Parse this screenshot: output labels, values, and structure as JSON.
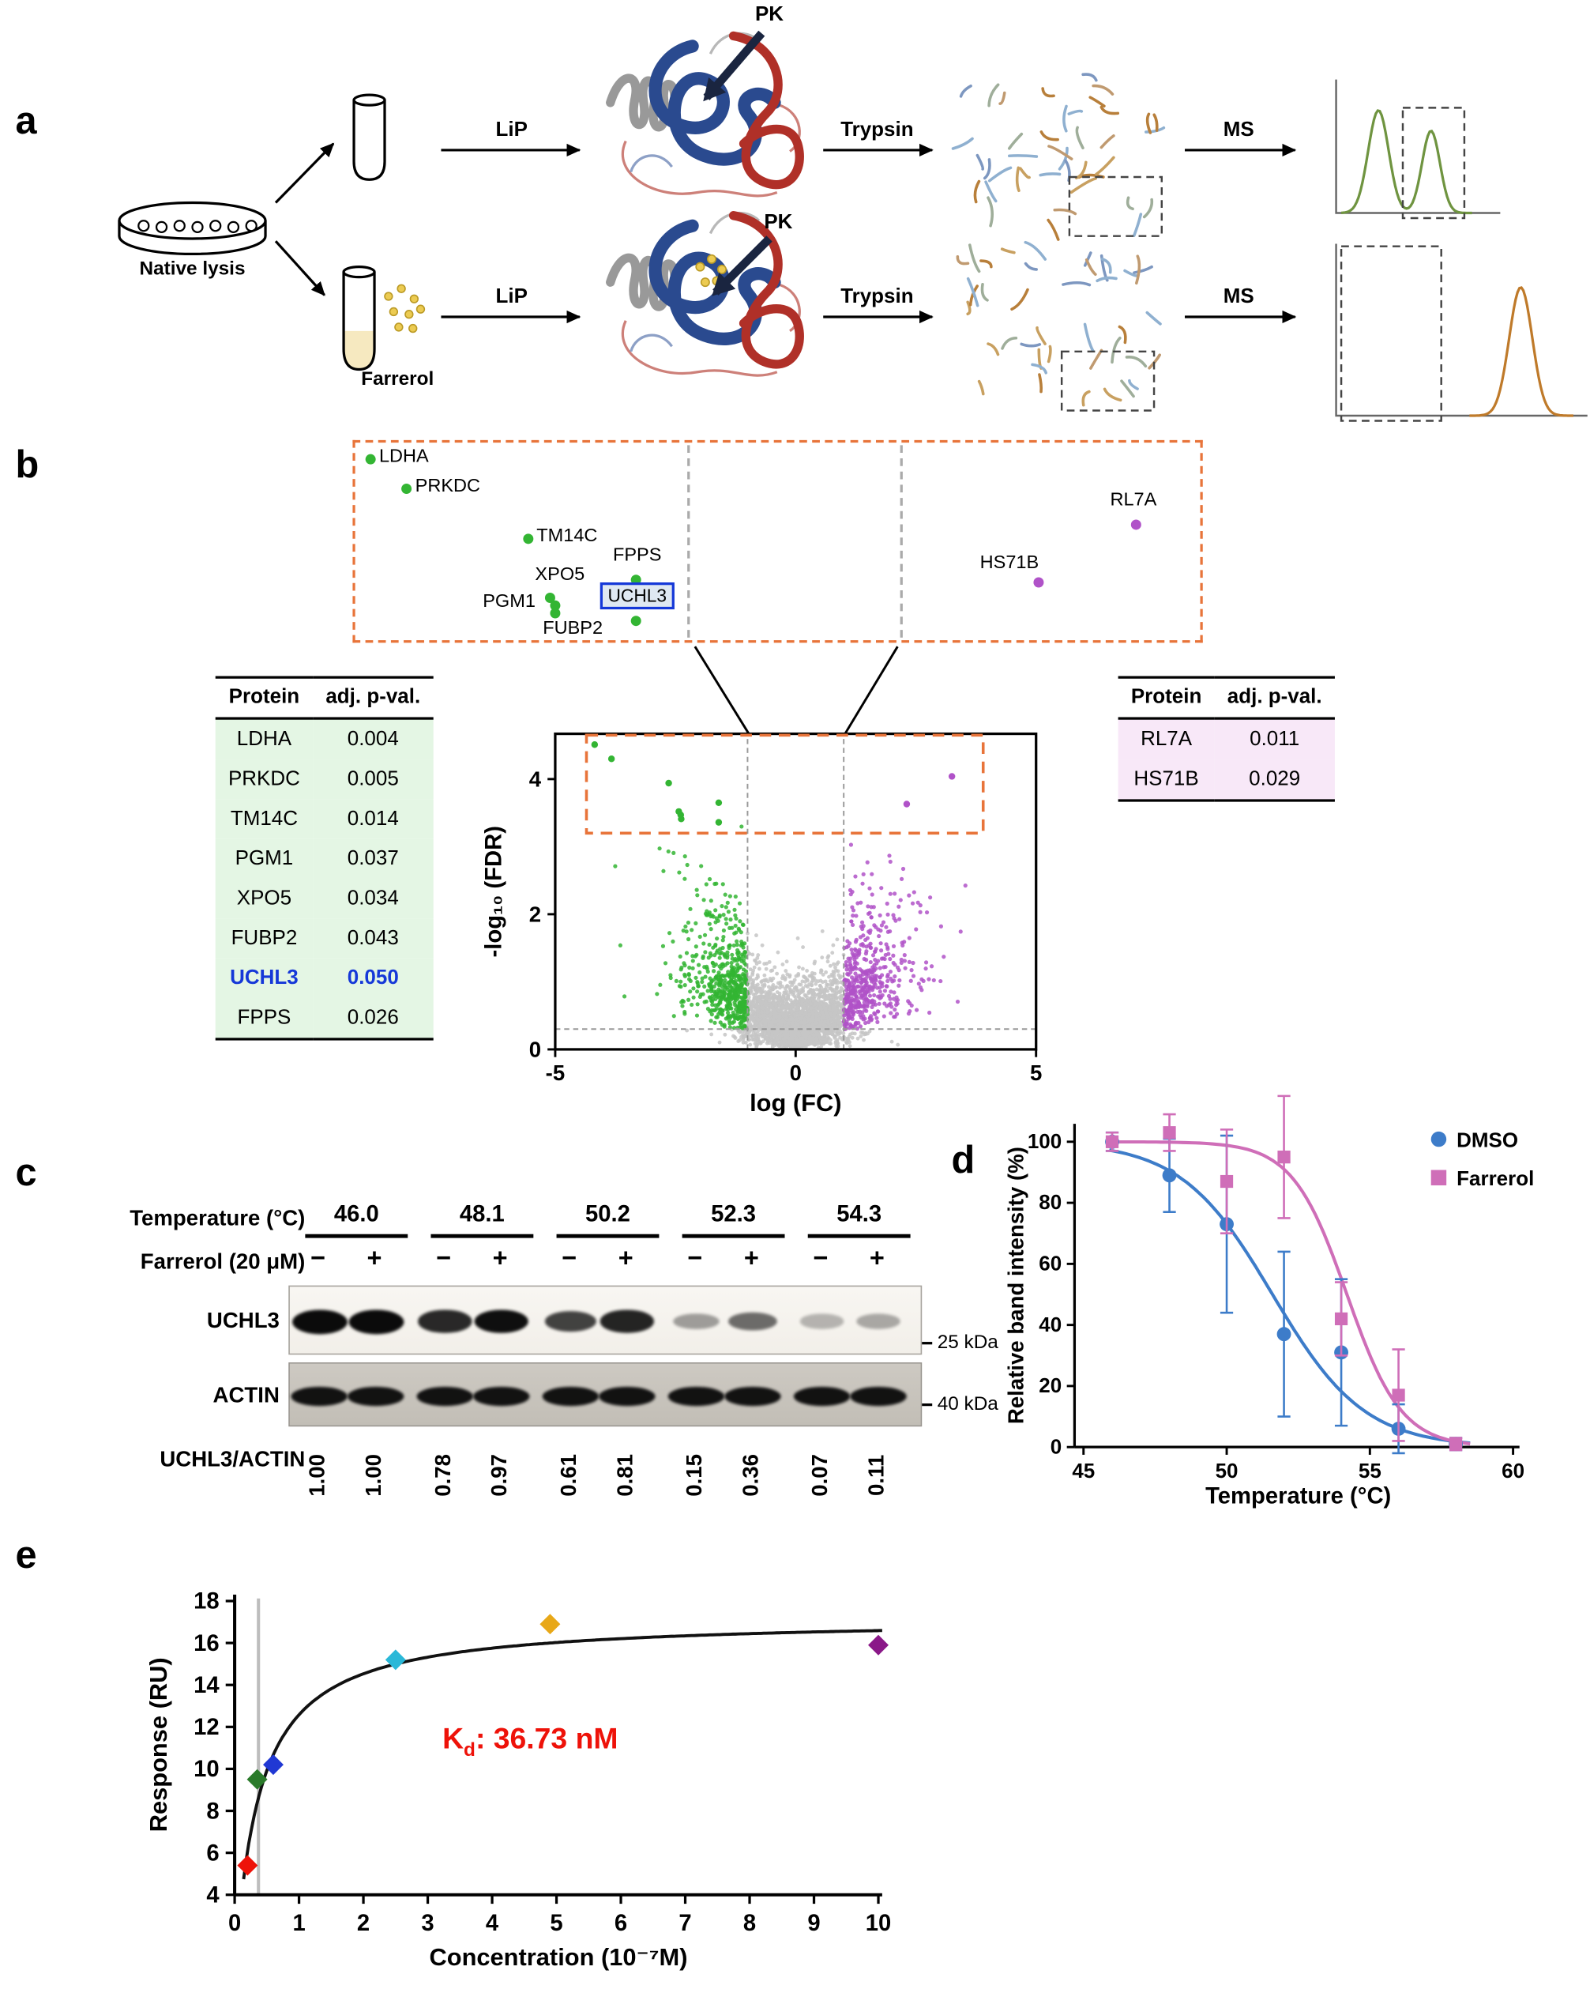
{
  "colors": {
    "green_point": "#33b533",
    "purple_point": "#b052c8",
    "orange_dash": "#e8743a",
    "uchl3_blue": "#1538d8",
    "kd_red": "#ee1209"
  },
  "panel_labels": {
    "a": "a",
    "b": "b",
    "c": "c",
    "d": "d",
    "e": "e"
  },
  "panel_a": {
    "native_lysis_label": "Native lysis",
    "farrerol_label": "Farrerol",
    "lip_label": "LiP",
    "trypsin_label": "Trypsin",
    "ms_label": "MS",
    "pk_label": "PK"
  },
  "panel_b": {
    "tables": {
      "green": {
        "headers": [
          "Protein",
          "adj. p-val."
        ],
        "rows": [
          [
            "LDHA",
            "0.004"
          ],
          [
            "PRKDC",
            "0.005"
          ],
          [
            "TM14C",
            "0.014"
          ],
          [
            "PGM1",
            "0.037"
          ],
          [
            "XPO5",
            "0.034"
          ],
          [
            "FUBP2",
            "0.043"
          ],
          [
            "UCHL3",
            "0.050"
          ],
          [
            "FPPS",
            "0.026"
          ]
        ],
        "highlight_row": "UCHL3"
      },
      "pink": {
        "headers": [
          "Protein",
          "adj. p-val."
        ],
        "rows": [
          [
            "RL7A",
            "0.011"
          ],
          [
            "HS71B",
            "0.029"
          ]
        ]
      }
    }
  },
  "panel_c": {
    "temperature_label": "Temperature (°C)",
    "temperatures": [
      "46.0",
      "48.1",
      "50.2",
      "52.3",
      "54.3"
    ],
    "farrerol_label": "Farrerol (20 μM)",
    "signs": [
      "−",
      "+",
      "−",
      "+",
      "−",
      "+",
      "−",
      "+",
      "−",
      "+"
    ],
    "blots": [
      {
        "name": "UCHL3",
        "marker": "25 kDa"
      },
      {
        "name": "ACTIN",
        "marker": "40 kDa"
      }
    ],
    "ratio_label": "UCHL3/ACTIN",
    "ratios": [
      "1.00",
      "1.00",
      "0.78",
      "0.97",
      "0.61",
      "0.81",
      "0.15",
      "0.36",
      "0.07",
      "0.11"
    ]
  },
  "panel_e": {
    "kd_main": "K",
    "kd_sub": "d",
    "kd_rest": ":  36.73 nM"
  },
  "chart_data": [
    {
      "id": "volcano",
      "type": "scatter",
      "xlabel": "log (FC)",
      "ylabel": "-log₁₀ (FDR)",
      "xlim": [
        -5,
        5
      ],
      "ylim": [
        0,
        4.67
      ],
      "xticks": [
        -5,
        0,
        5
      ],
      "yticks": [
        0,
        2,
        4
      ],
      "threshold_x": [
        -1,
        1
      ],
      "threshold_y": 0.3,
      "zoom_box": {
        "x": [
          -4.35,
          3.9
        ],
        "y": [
          3.2,
          4.65
        ]
      },
      "cloud": {
        "seed": 42,
        "n_center": 3000,
        "n_wings": 620,
        "n_outliers": 40
      },
      "groups": {
        "down_color": "#33b533",
        "up_color": "#b052c8",
        "ns_color": "#c6c6c6"
      },
      "labeled_points": [
        {
          "label": "LDHA",
          "x": -4.18,
          "y": 4.51,
          "group": "down",
          "lx": 7,
          "ly": -10
        },
        {
          "label": "PRKDC",
          "x": -3.83,
          "y": 4.3,
          "group": "down",
          "lx": 7,
          "ly": -10
        },
        {
          "label": "TM14C",
          "x": -2.64,
          "y": 3.94,
          "group": "down",
          "lx": 6,
          "ly": -10
        },
        {
          "label": "FPPS",
          "x": -1.6,
          "y": 3.65,
          "group": "down",
          "lx": -18,
          "ly": -27
        },
        {
          "label": "XPO5",
          "x": -2.43,
          "y": 3.52,
          "group": "down",
          "lx": -12,
          "ly": -26
        },
        {
          "label": "PGM1",
          "x": -2.39,
          "y": 3.47,
          "group": "down",
          "lx": -56,
          "ly": -11
        },
        {
          "label": "FUBP2",
          "x": -2.38,
          "y": 3.41,
          "group": "down",
          "lx": -10,
          "ly": 4
        },
        {
          "label": "UCHL3",
          "x": -1.6,
          "y": 3.36,
          "group": "down",
          "boxed": true,
          "lx": -28,
          "ly": -30
        },
        {
          "label": "RL7A",
          "x": 3.25,
          "y": 4.04,
          "group": "up",
          "lx": -20,
          "ly": -27
        },
        {
          "label": "HS71B",
          "x": 2.31,
          "y": 3.63,
          "group": "up",
          "lx": -46,
          "ly": -23
        }
      ]
    },
    {
      "id": "melting",
      "type": "line",
      "xlabel": "Temperature (°C)",
      "ylabel": "Relative band intensity (%)",
      "xlim": [
        45,
        60
      ],
      "ylim": [
        0,
        115
      ],
      "xticks": [
        45,
        50,
        55,
        60
      ],
      "yticks": [
        0,
        20,
        40,
        60,
        80,
        100
      ],
      "legend_position": "top-right",
      "series": [
        {
          "name": "DMSO",
          "marker": "circle",
          "color": "#3d7cc9",
          "x": [
            46,
            48,
            50,
            52,
            54,
            56,
            58
          ],
          "y": [
            100,
            89,
            73,
            37,
            31,
            6,
            1
          ],
          "yerr": [
            3,
            12,
            29,
            27,
            24,
            8,
            2
          ],
          "tm": 51.6,
          "slope": 1.6
        },
        {
          "name": "Farrerol",
          "marker": "square",
          "color": "#cf6eb8",
          "x": [
            46,
            48,
            50,
            52,
            54,
            56,
            58
          ],
          "y": [
            100,
            103,
            87,
            95,
            42,
            17,
            1
          ],
          "yerr": [
            3,
            6,
            17,
            20,
            12,
            15,
            2
          ],
          "tm": 54.2,
          "slope": 0.95
        }
      ]
    },
    {
      "id": "spr",
      "type": "scatter",
      "xlabel": "Concentration (10⁻⁷M)",
      "ylabel": "Response (RU)",
      "xlim": [
        0,
        10.2
      ],
      "ylim": [
        4,
        18
      ],
      "xticks": [
        0,
        1,
        2,
        3,
        4,
        5,
        6,
        7,
        8,
        9,
        10
      ],
      "yticks": [
        4,
        6,
        8,
        10,
        12,
        14,
        16,
        18
      ],
      "vline_x": 0.37,
      "points": [
        {
          "x": 0.2,
          "y": 5.4,
          "color": "#ee1209"
        },
        {
          "x": 0.35,
          "y": 9.5,
          "color": "#2a7a2a"
        },
        {
          "x": 0.6,
          "y": 10.2,
          "color": "#2038d4"
        },
        {
          "x": 2.5,
          "y": 15.2,
          "color": "#2ab8d8"
        },
        {
          "x": 4.9,
          "y": 16.9,
          "color": "#e8a818"
        },
        {
          "x": 10,
          "y": 15.9,
          "color": "#8a1888"
        }
      ],
      "fit": {
        "kd": 0.3673,
        "rmax": 17.2,
        "start": 0.14
      },
      "kd_nM": 36.73
    }
  ]
}
